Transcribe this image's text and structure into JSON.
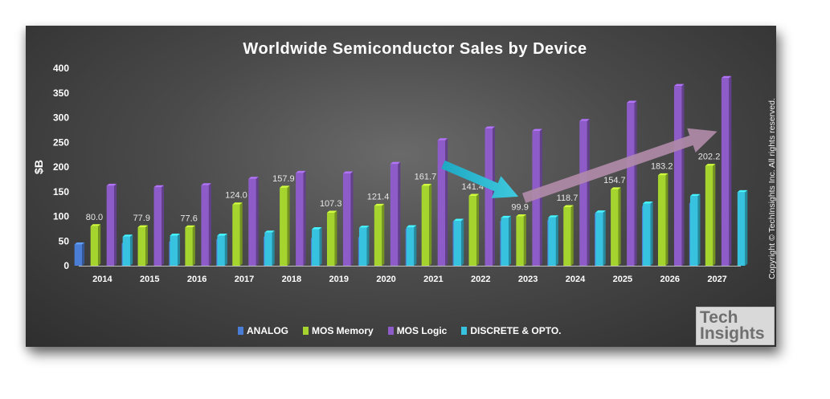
{
  "chart_data": {
    "type": "bar",
    "title": "Worldwide Semiconductor Sales by Device",
    "ylabel": "$B",
    "ylim": [
      0,
      400
    ],
    "yticks": [
      0,
      50,
      100,
      150,
      200,
      250,
      300,
      350,
      400
    ],
    "categories": [
      "2014",
      "2015",
      "2016",
      "2017",
      "2018",
      "2019",
      "2020",
      "2021",
      "2022",
      "2023",
      "2024",
      "2025",
      "2026",
      "2027"
    ],
    "series": [
      {
        "name": "ANALOG",
        "color": "#4a7ed6",
        "values": [
          43,
          45,
          48,
          53,
          58,
          55,
          57,
          74,
          89,
          90,
          92,
          106,
          120,
          126
        ]
      },
      {
        "name": "MOS Memory",
        "color": "#a6d42f",
        "values": [
          80.0,
          77.9,
          77.6,
          124.0,
          157.9,
          107.3,
          121.4,
          161.7,
          141.4,
          99.9,
          118.7,
          154.7,
          183.2,
          202.2
        ]
      },
      {
        "name": "MOS Logic",
        "color": "#8e5cc8",
        "values": [
          162,
          159,
          163,
          176,
          188,
          187,
          206,
          254,
          278,
          273,
          293,
          330,
          364,
          380
        ]
      },
      {
        "name": "DISCRETE & OPTO.",
        "color": "#37c3df",
        "values": [
          59,
          61,
          61,
          67,
          74,
          77,
          78,
          91,
          97,
          98,
          108,
          126,
          141,
          149
        ]
      }
    ],
    "data_labels": {
      "series": "MOS Memory",
      "labels": [
        "80.0",
        "77.9",
        "77.6",
        "124.0",
        "157.9",
        "107.3",
        "121.4",
        "161.7",
        "141.4",
        "99.9",
        "118.7",
        "154.7",
        "183.2",
        "202.2"
      ]
    },
    "annotations": [
      {
        "type": "arrow",
        "color": "#2bb5cc",
        "from": {
          "x": "2021",
          "y": 205
        },
        "to": {
          "x": "2023",
          "y": 140
        }
      },
      {
        "type": "arrow",
        "color": "#b08aa8",
        "from": {
          "x": "2023",
          "y": 137
        },
        "to": {
          "x": "2027",
          "y": 272
        }
      }
    ],
    "legend": "bottom",
    "grid": false
  },
  "copyright": "Copyright © TechInsights Inc.  All rights reserved.",
  "logo": {
    "line1": "Tech",
    "line2": "Insights"
  }
}
